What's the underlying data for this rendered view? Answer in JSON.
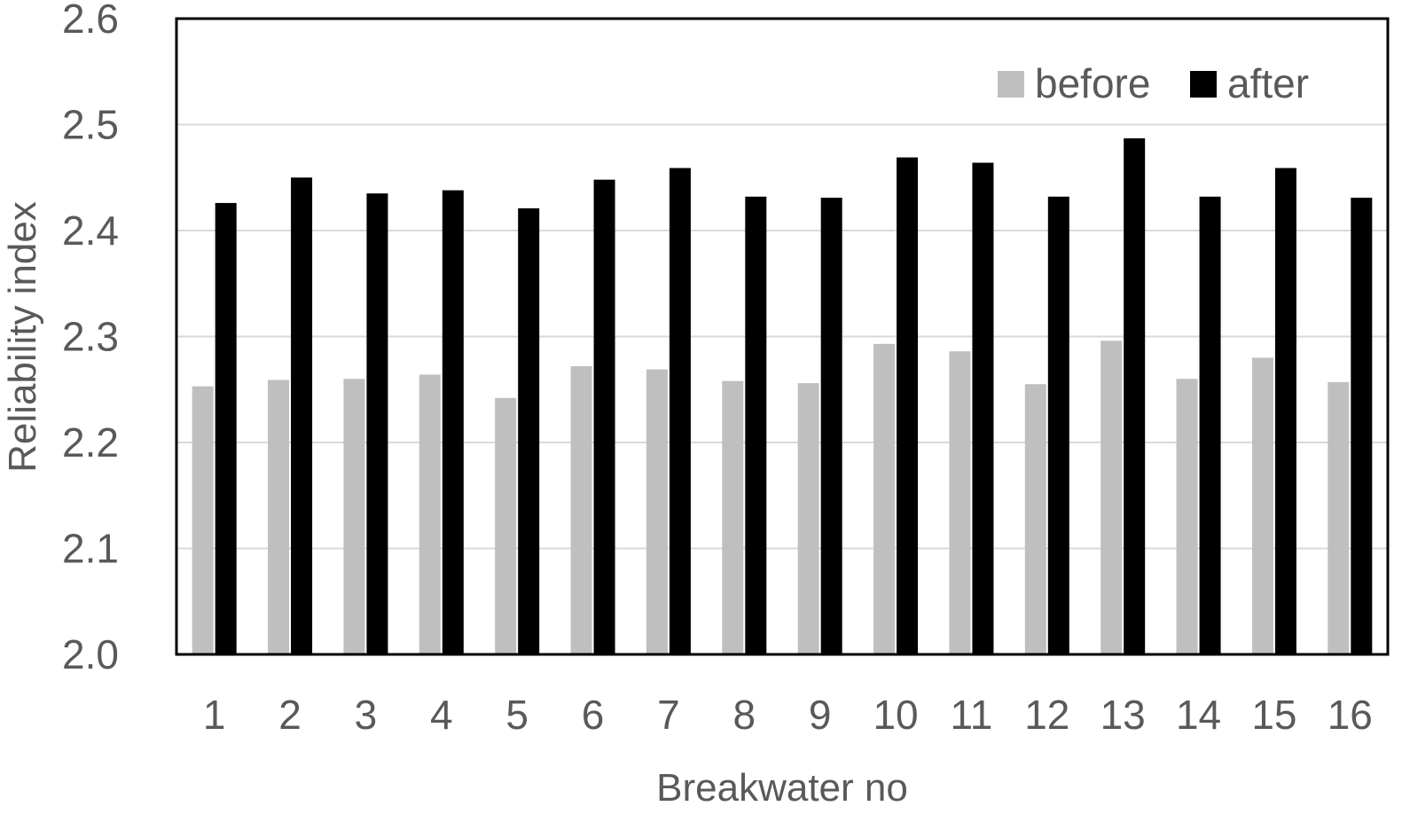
{
  "chart_data": {
    "type": "bar",
    "title": "",
    "xlabel": "Breakwater no",
    "ylabel": "Reliability index",
    "categories": [
      "1",
      "2",
      "3",
      "4",
      "5",
      "6",
      "7",
      "8",
      "9",
      "10",
      "11",
      "12",
      "13",
      "14",
      "15",
      "16"
    ],
    "series": [
      {
        "name": "before",
        "color": "#bfbfbf",
        "values": [
          2.253,
          2.259,
          2.26,
          2.264,
          2.242,
          2.272,
          2.269,
          2.258,
          2.256,
          2.293,
          2.286,
          2.255,
          2.296,
          2.26,
          2.28,
          2.257
        ]
      },
      {
        "name": "after",
        "color": "#000000",
        "values": [
          2.426,
          2.45,
          2.435,
          2.438,
          2.421,
          2.448,
          2.459,
          2.432,
          2.431,
          2.469,
          2.464,
          2.432,
          2.487,
          2.432,
          2.459,
          2.431
        ]
      }
    ],
    "ylim": [
      2.0,
      2.6
    ],
    "yticks": [
      "2.0",
      "2.1",
      "2.2",
      "2.3",
      "2.4",
      "2.5",
      "2.6"
    ],
    "grid": true,
    "legend_position": "top-right"
  }
}
